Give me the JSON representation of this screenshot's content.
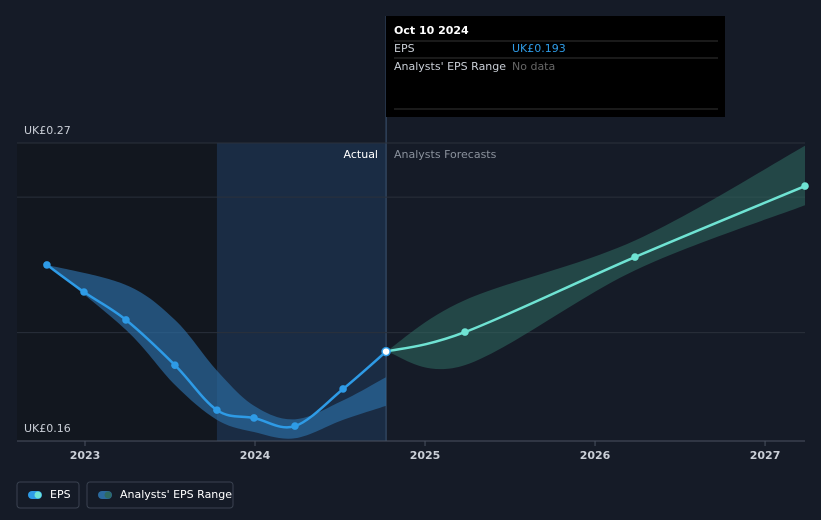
{
  "chart_data": {
    "type": "line",
    "xlim": [
      2022.6,
      2027.235
    ],
    "xticks": [
      2023,
      2024,
      2025,
      2026,
      2027
    ],
    "ylim": [
      0.16,
      0.27
    ],
    "yticks": [
      {
        "value": 0.16,
        "label": "UK£0.16"
      },
      {
        "value": 0.27,
        "label": "UK£0.27"
      }
    ],
    "grid_values": [
      0.25,
      0.2
    ],
    "actual_label": "Actual",
    "forecast_label": "Analysts Forecasts",
    "actual_until": 2024.771,
    "highlight_range": [
      2023.776,
      2024.771
    ],
    "series": [
      {
        "name": "EPS",
        "color": "#2e9be6",
        "forecast_color": "#6fe3d3",
        "x": [
          2022.776,
          2022.994,
          2023.241,
          2023.529,
          2023.776,
          2023.994,
          2024.235,
          2024.518,
          2024.771,
          2025.235,
          2026.235,
          2027.235
        ],
        "values": [
          0.225,
          0.215,
          0.2047,
          0.188,
          0.1714,
          0.1685,
          0.1655,
          0.1792,
          0.193,
          0.2002,
          0.2279,
          0.2541
        ]
      },
      {
        "name": "Analysts' EPS Range",
        "color": "#2b6a9e",
        "forecast_color": "#2f6b62",
        "x": [
          2022.776,
          2023.241,
          2023.529,
          2023.776,
          2023.994,
          2024.235,
          2024.518,
          2024.771,
          null,
          2024.771,
          2025.235,
          2026.235,
          2027.235
        ],
        "high": [
          0.225,
          0.2176,
          0.2047,
          0.186,
          0.173,
          0.168,
          0.175,
          0.1836,
          null,
          0.193,
          0.212,
          0.234,
          0.269
        ],
        "low": [
          0.225,
          0.201,
          0.1807,
          0.1678,
          0.1633,
          0.161,
          0.1678,
          0.173,
          null,
          0.193,
          0.188,
          0.223,
          0.247
        ]
      }
    ],
    "tooltip": {
      "date": "Oct 10 2024",
      "rows": [
        [
          "EPS",
          "UK£0.193"
        ],
        [
          "Analysts' EPS Range",
          "No data"
        ]
      ]
    }
  }
}
